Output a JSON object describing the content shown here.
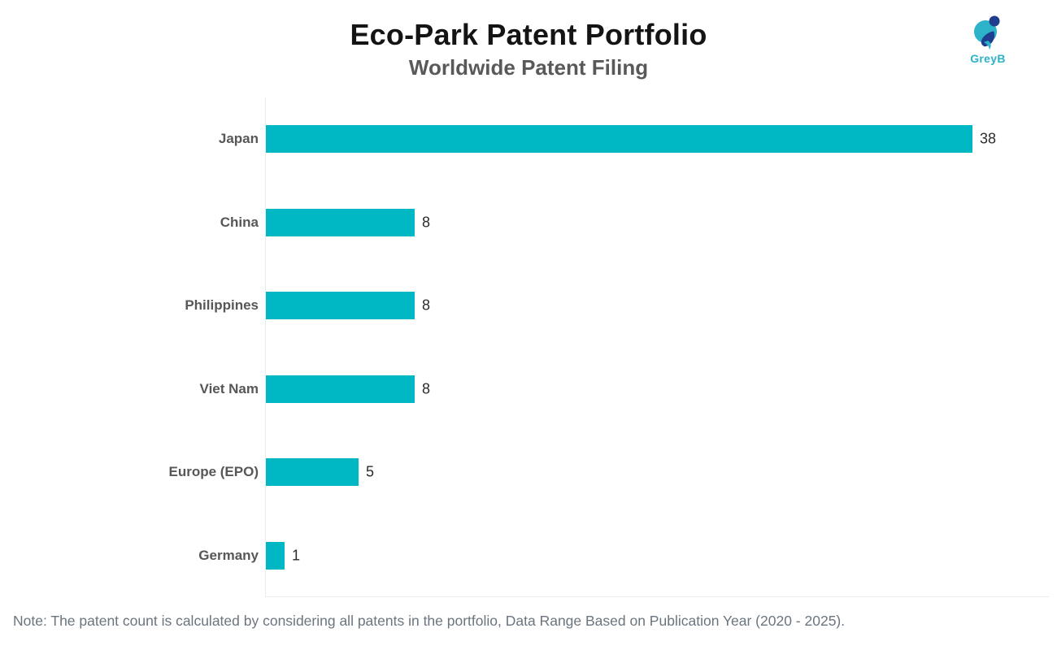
{
  "header": {
    "title": "Eco-Park Patent Portfolio",
    "subtitle": "Worldwide Patent Filing"
  },
  "logo": {
    "brand": "GreyB",
    "cyan": "#2cb2c9",
    "navy": "#1f3e8f"
  },
  "chart_data": {
    "type": "bar",
    "orientation": "horizontal",
    "title": "Eco-Park Patent Portfolio",
    "subtitle": "Worldwide Patent Filing",
    "categories": [
      "Japan",
      "China",
      "Philippines",
      "Viet Nam",
      "Europe (EPO)",
      "Germany"
    ],
    "values": [
      38,
      8,
      8,
      8,
      5,
      1
    ],
    "xlabel": "",
    "ylabel": "",
    "xlim": [
      0,
      40
    ],
    "bar_color": "#00B8C4",
    "value_labels_shown": true,
    "grid": false,
    "legend": "none"
  },
  "note": "Note: The patent count is calculated by considering all patents in the portfolio, Data Range Based on Publication Year (2020 - 2025)."
}
